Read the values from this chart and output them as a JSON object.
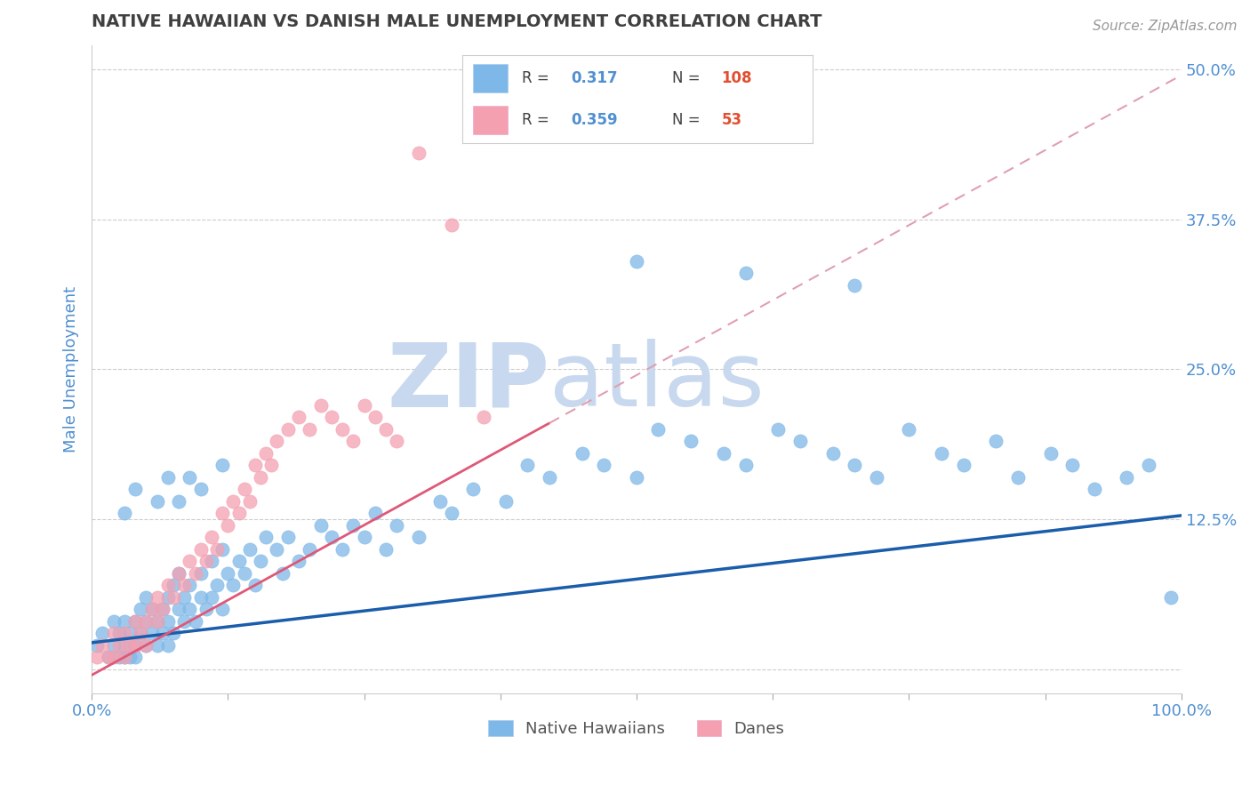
{
  "title": "NATIVE HAWAIIAN VS DANISH MALE UNEMPLOYMENT CORRELATION CHART",
  "source": "Source: ZipAtlas.com",
  "xlabel": "",
  "ylabel": "Male Unemployment",
  "xlim": [
    0,
    1
  ],
  "ylim": [
    -0.02,
    0.52
  ],
  "yticks": [
    0,
    0.125,
    0.25,
    0.375,
    0.5
  ],
  "ytick_labels": [
    "",
    "12.5%",
    "25.0%",
    "37.5%",
    "50.0%"
  ],
  "xticks": [
    0.0,
    0.125,
    0.25,
    0.375,
    0.5,
    0.625,
    0.75,
    0.875,
    1.0
  ],
  "xtick_labels": [
    "0.0%",
    "",
    "",
    "",
    "",
    "",
    "",
    "",
    "100.0%"
  ],
  "color_hawaiian": "#7EB8E8",
  "color_dane": "#F4A0B0",
  "color_trend_hawaiian": "#1A5DAB",
  "color_trend_dane": "#E05878",
  "color_trend_dane_dash": "#E0A0B0",
  "title_color": "#404040",
  "axis_label_color": "#5090D0",
  "tick_color": "#5090D0",
  "watermark_zip": "ZIP",
  "watermark_atlas": "atlas",
  "watermark_color_zip": "#C8D8EE",
  "watermark_color_atlas": "#C8D8EE",
  "background_color": "#FFFFFF",
  "grid_color": "#CCCCCC",
  "legend_r1": "R = ",
  "legend_r1_val": "0.317",
  "legend_n1": "N = ",
  "legend_n1_val": "108",
  "legend_r2": "R = ",
  "legend_r2_val": "0.359",
  "legend_n2": "N =  ",
  "legend_n2_val": "53",
  "hawaiian_x": [
    0.005,
    0.01,
    0.015,
    0.02,
    0.02,
    0.025,
    0.025,
    0.03,
    0.03,
    0.03,
    0.035,
    0.035,
    0.04,
    0.04,
    0.04,
    0.045,
    0.045,
    0.05,
    0.05,
    0.05,
    0.055,
    0.055,
    0.06,
    0.06,
    0.065,
    0.065,
    0.07,
    0.07,
    0.07,
    0.075,
    0.075,
    0.08,
    0.08,
    0.085,
    0.085,
    0.09,
    0.09,
    0.095,
    0.1,
    0.1,
    0.105,
    0.11,
    0.11,
    0.115,
    0.12,
    0.12,
    0.125,
    0.13,
    0.135,
    0.14,
    0.145,
    0.15,
    0.155,
    0.16,
    0.17,
    0.175,
    0.18,
    0.19,
    0.2,
    0.21,
    0.22,
    0.23,
    0.24,
    0.25,
    0.26,
    0.27,
    0.28,
    0.3,
    0.32,
    0.33,
    0.35,
    0.38,
    0.4,
    0.42,
    0.45,
    0.47,
    0.5,
    0.52,
    0.55,
    0.58,
    0.6,
    0.63,
    0.65,
    0.68,
    0.7,
    0.72,
    0.75,
    0.78,
    0.8,
    0.83,
    0.85,
    0.88,
    0.9,
    0.92,
    0.95,
    0.97,
    0.99,
    0.5,
    0.6,
    0.7,
    0.03,
    0.04,
    0.06,
    0.07,
    0.08,
    0.09,
    0.1,
    0.12
  ],
  "hawaiian_y": [
    0.02,
    0.03,
    0.01,
    0.02,
    0.04,
    0.01,
    0.03,
    0.02,
    0.04,
    0.01,
    0.03,
    0.01,
    0.04,
    0.02,
    0.01,
    0.03,
    0.05,
    0.04,
    0.02,
    0.06,
    0.03,
    0.05,
    0.04,
    0.02,
    0.05,
    0.03,
    0.06,
    0.04,
    0.02,
    0.07,
    0.03,
    0.05,
    0.08,
    0.04,
    0.06,
    0.05,
    0.07,
    0.04,
    0.08,
    0.06,
    0.05,
    0.09,
    0.06,
    0.07,
    0.1,
    0.05,
    0.08,
    0.07,
    0.09,
    0.08,
    0.1,
    0.07,
    0.09,
    0.11,
    0.1,
    0.08,
    0.11,
    0.09,
    0.1,
    0.12,
    0.11,
    0.1,
    0.12,
    0.11,
    0.13,
    0.1,
    0.12,
    0.11,
    0.14,
    0.13,
    0.15,
    0.14,
    0.17,
    0.16,
    0.18,
    0.17,
    0.16,
    0.2,
    0.19,
    0.18,
    0.17,
    0.2,
    0.19,
    0.18,
    0.17,
    0.16,
    0.2,
    0.18,
    0.17,
    0.19,
    0.16,
    0.18,
    0.17,
    0.15,
    0.16,
    0.17,
    0.06,
    0.34,
    0.33,
    0.32,
    0.13,
    0.15,
    0.14,
    0.16,
    0.14,
    0.16,
    0.15,
    0.17
  ],
  "dane_x": [
    0.005,
    0.01,
    0.015,
    0.02,
    0.02,
    0.025,
    0.03,
    0.03,
    0.035,
    0.04,
    0.04,
    0.045,
    0.05,
    0.05,
    0.055,
    0.06,
    0.06,
    0.065,
    0.07,
    0.075,
    0.08,
    0.085,
    0.09,
    0.095,
    0.1,
    0.105,
    0.11,
    0.115,
    0.12,
    0.125,
    0.13,
    0.135,
    0.14,
    0.145,
    0.15,
    0.155,
    0.16,
    0.165,
    0.17,
    0.18,
    0.19,
    0.2,
    0.21,
    0.22,
    0.23,
    0.24,
    0.25,
    0.26,
    0.27,
    0.28,
    0.3,
    0.33,
    0.36
  ],
  "dane_y": [
    0.01,
    0.02,
    0.01,
    0.03,
    0.01,
    0.02,
    0.03,
    0.01,
    0.02,
    0.04,
    0.02,
    0.03,
    0.04,
    0.02,
    0.05,
    0.04,
    0.06,
    0.05,
    0.07,
    0.06,
    0.08,
    0.07,
    0.09,
    0.08,
    0.1,
    0.09,
    0.11,
    0.1,
    0.13,
    0.12,
    0.14,
    0.13,
    0.15,
    0.14,
    0.17,
    0.16,
    0.18,
    0.17,
    0.19,
    0.2,
    0.21,
    0.2,
    0.22,
    0.21,
    0.2,
    0.19,
    0.22,
    0.21,
    0.2,
    0.19,
    0.43,
    0.37,
    0.21
  ],
  "trend_hawaiian_x0": 0.0,
  "trend_hawaiian_y0": 0.022,
  "trend_hawaiian_x1": 1.0,
  "trend_hawaiian_y1": 0.128,
  "trend_dane_solid_x0": 0.0,
  "trend_dane_solid_y0": -0.005,
  "trend_dane_solid_x1": 0.42,
  "trend_dane_solid_y1": 0.205,
  "trend_dane_dash_x0": 0.42,
  "trend_dane_dash_y0": 0.205,
  "trend_dane_dash_x1": 1.0,
  "trend_dane_dash_y1": 0.495
}
